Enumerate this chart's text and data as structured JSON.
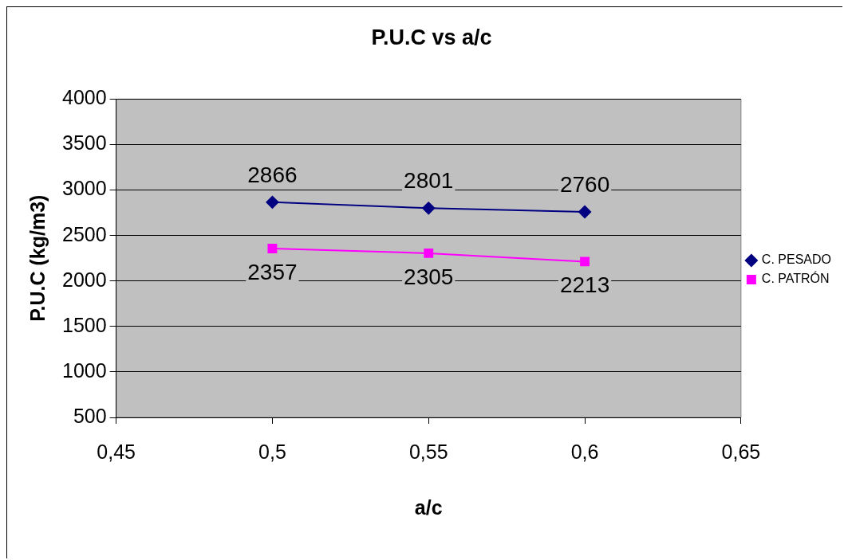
{
  "chart_data": {
    "type": "line",
    "title": "P.U.C vs a/c",
    "xlabel": "a/c",
    "ylabel": "P.U.C (kg/m3)",
    "x": [
      0.5,
      0.55,
      0.6
    ],
    "series": [
      {
        "name": "C. PESADO",
        "color": "#000080",
        "marker": "diamond",
        "values": [
          2866,
          2801,
          2760
        ]
      },
      {
        "name": "C. PATRÓN",
        "color": "#ff00ff",
        "marker": "square",
        "values": [
          2357,
          2305,
          2213
        ]
      }
    ],
    "xlim": [
      0.45,
      0.65
    ],
    "xticks": [
      {
        "value": 0.45,
        "label": "0,45"
      },
      {
        "value": 0.5,
        "label": "0,5"
      },
      {
        "value": 0.55,
        "label": "0,55"
      },
      {
        "value": 0.6,
        "label": "0,6"
      },
      {
        "value": 0.65,
        "label": "0,65"
      }
    ],
    "ylim": [
      500,
      4000
    ],
    "yticks": [
      500,
      1000,
      1500,
      2000,
      2500,
      3000,
      3500,
      4000
    ],
    "grid": "y",
    "legend": "right",
    "data_labels": true
  }
}
